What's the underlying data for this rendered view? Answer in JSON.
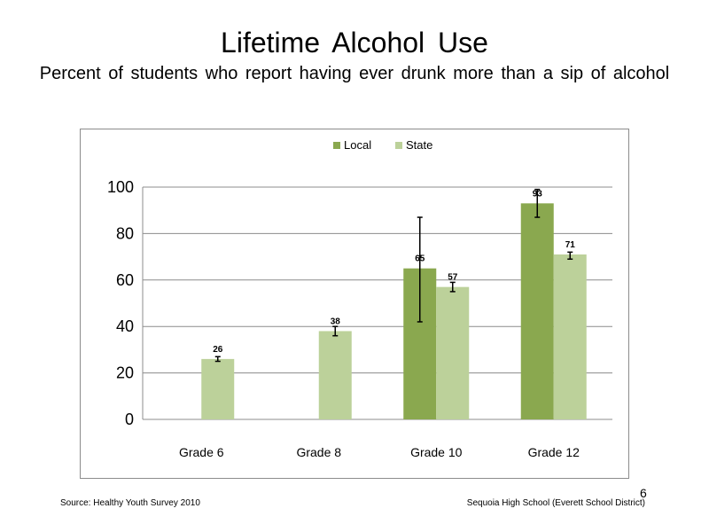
{
  "slide": {
    "title": "Lifetime Alcohol Use",
    "subtitle": "Percent of students who report having ever drunk more than a sip of alcohol",
    "source": "Source: Healthy Youth Survey 2010",
    "school": "Sequoia High School (Everett School District)",
    "page_number": "6"
  },
  "chart_data": {
    "type": "bar",
    "categories": [
      "Grade 6",
      "Grade 8",
      "Grade 10",
      "Grade 12"
    ],
    "series": [
      {
        "name": "Local",
        "color": "#8aa84f",
        "values": [
          null,
          null,
          65,
          93
        ],
        "error_low": [
          null,
          null,
          42,
          87
        ],
        "error_high": [
          null,
          null,
          87,
          99
        ]
      },
      {
        "name": "State",
        "color": "#bcd19a",
        "values": [
          26,
          38,
          57,
          71
        ],
        "error_low": [
          25,
          36,
          55,
          69
        ],
        "error_high": [
          27,
          40,
          59,
          72
        ]
      }
    ],
    "ylim": [
      0,
      100
    ],
    "yticks": [
      0,
      20,
      40,
      60,
      80,
      100
    ],
    "grid": true,
    "legend_position": "top-center",
    "data_labels": true
  }
}
